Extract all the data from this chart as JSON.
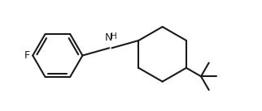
{
  "bg_color": "#ffffff",
  "line_color": "#1a1a1a",
  "line_width": 1.5,
  "figsize": [
    3.22,
    1.37
  ],
  "dpi": 100,
  "F_label": "F",
  "N_label": "N",
  "H_label": "H",
  "font_size_atom": 9.0
}
